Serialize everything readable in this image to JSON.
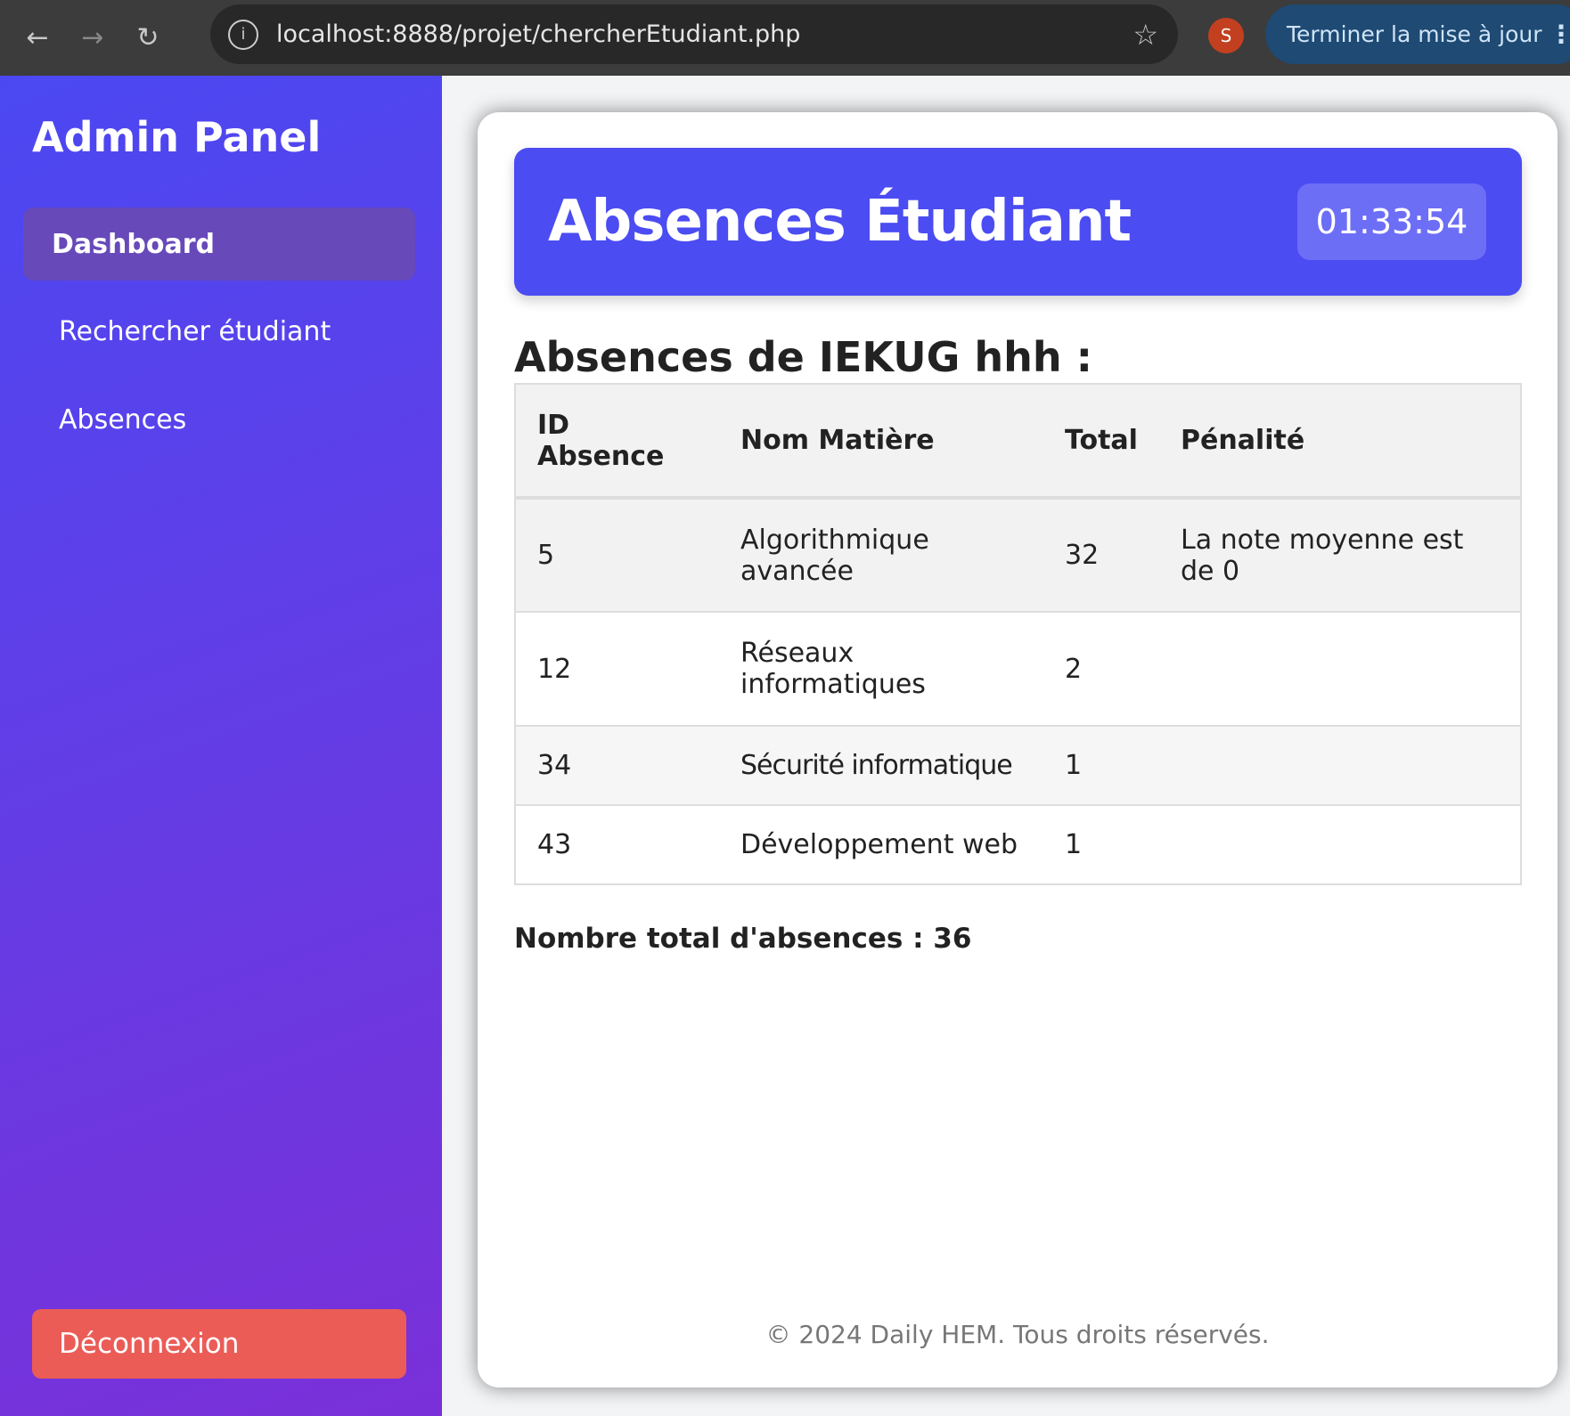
{
  "browser": {
    "url": "localhost:8888/projet/chercherEtudiant.php",
    "profile_initial": "S",
    "update_label": "Terminer la mise à jour"
  },
  "sidebar": {
    "brand": "Admin Panel",
    "items": [
      {
        "label": "Dashboard",
        "active": true
      },
      {
        "label": "Rechercher étudiant"
      },
      {
        "label": "Absences"
      }
    ],
    "logout_label": "Déconnexion"
  },
  "header": {
    "title": "Absences Étudiant",
    "clock": "01:33:54"
  },
  "main": {
    "subtitle": "Absences de IEKUG hhh :",
    "columns": [
      "ID Absence",
      "Nom Matière",
      "Total",
      "Pénalité"
    ],
    "rows": [
      {
        "id": "5",
        "matiere": "Algorithmique avancée",
        "total": "32",
        "penalite": "La note moyenne est de 0"
      },
      {
        "id": "12",
        "matiere": "Réseaux informatiques",
        "total": "2",
        "penalite": ""
      },
      {
        "id": "34",
        "matiere": "Sécurité informatique",
        "total": "1",
        "penalite": ""
      },
      {
        "id": "43",
        "matiere": "Développement web",
        "total": "1",
        "penalite": ""
      }
    ],
    "total_label": "Nombre total d'absences : 36"
  },
  "footer": "© 2024 Daily HEM. Tous droits réservés.",
  "colors": {
    "sidebar_top": "#4b48f2",
    "sidebar_bottom": "#7a30d8",
    "banner": "#4b4cf2",
    "logout": "#eb5c57"
  }
}
